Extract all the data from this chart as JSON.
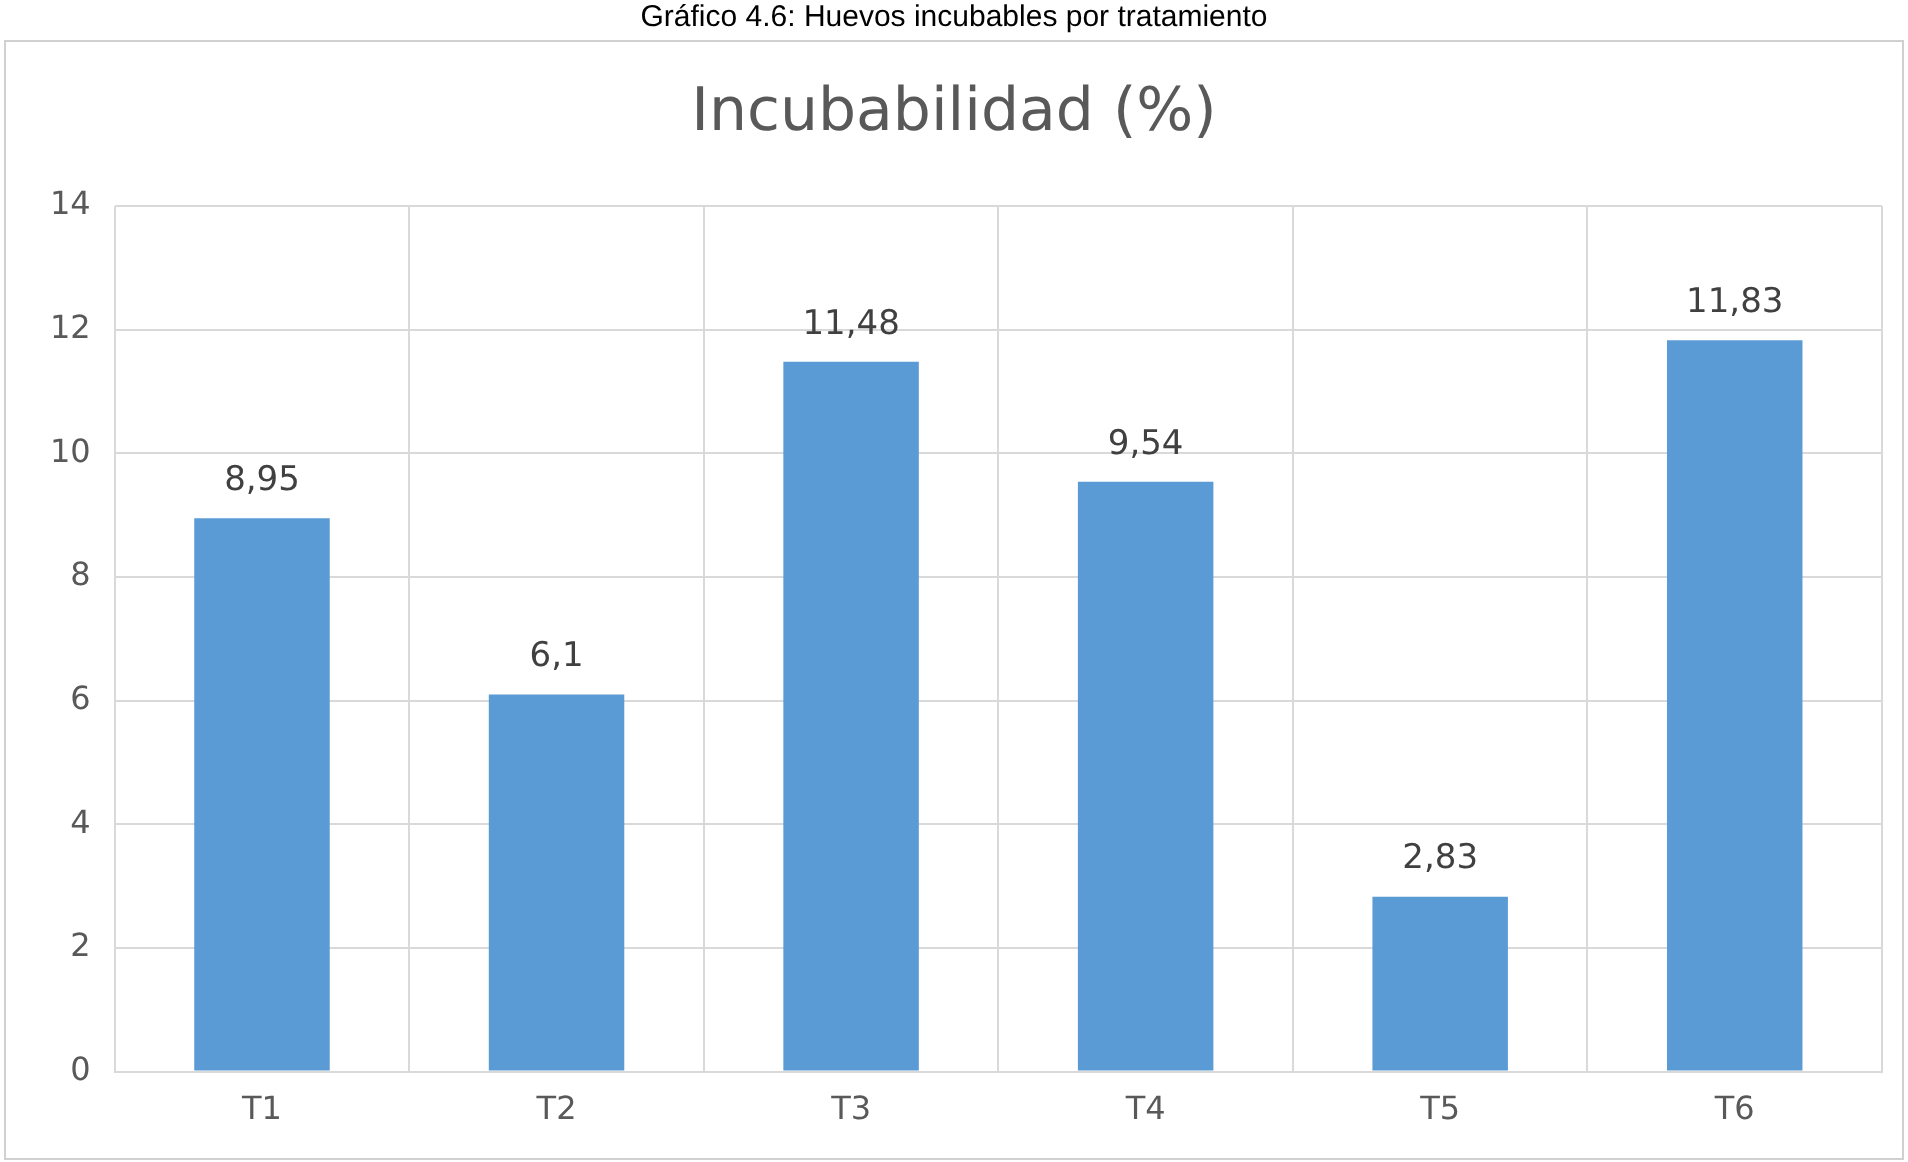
{
  "chart_data": {
    "type": "bar",
    "title": "Incubabilidad (%)",
    "annotations": [
      "Gráfico 4.6: Huevos incubables por tratamiento"
    ],
    "categories": [
      "T1",
      "T2",
      "T3",
      "T4",
      "T5",
      "T6"
    ],
    "values": [
      8.95,
      6.1,
      11.48,
      9.54,
      2.83,
      11.83
    ],
    "value_labels": [
      "8,95",
      "6,1",
      "11,48",
      "9,54",
      "2,83",
      "11,83"
    ],
    "color": "#5b9bd5",
    "ylim": [
      0,
      14
    ],
    "yticks": [
      0,
      2,
      4,
      6,
      8,
      10,
      12,
      14
    ],
    "grid": true,
    "legend": false
  }
}
